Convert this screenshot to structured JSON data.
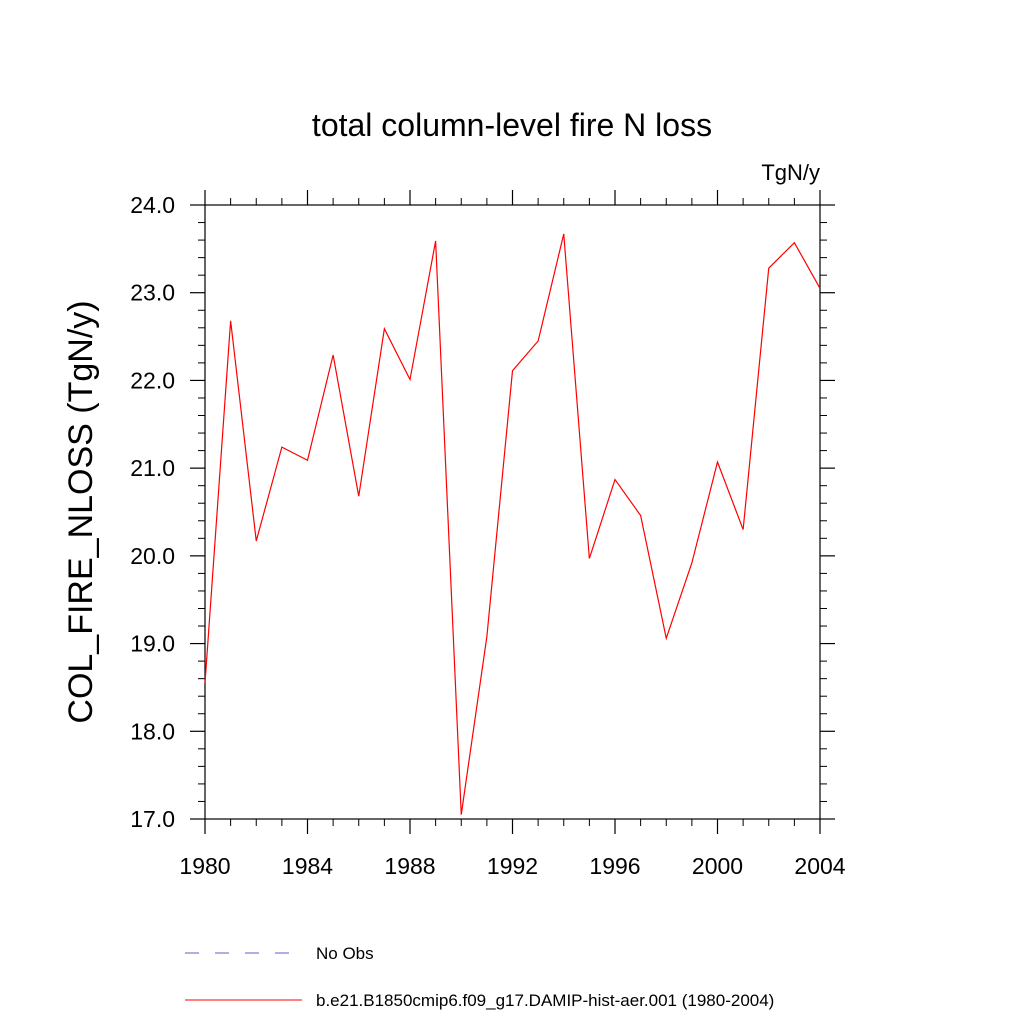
{
  "chart_data": {
    "type": "line",
    "title": "total column-level fire N loss",
    "units_label": "TgN/y",
    "xlabel": "",
    "ylabel": "COL_FIRE_NLOSS  (TgN/y)",
    "xlim": [
      1980,
      2004
    ],
    "ylim": [
      17.0,
      24.0
    ],
    "x_ticks": [
      "1980",
      "1984",
      "1988",
      "1992",
      "1996",
      "2000",
      "2004"
    ],
    "y_ticks": [
      "17.0",
      "18.0",
      "19.0",
      "20.0",
      "21.0",
      "22.0",
      "23.0",
      "24.0"
    ],
    "grid": false,
    "legend_position": "bottom",
    "series": [
      {
        "name": "No Obs",
        "color": "#6a5acd",
        "dash": "dashed",
        "x": [],
        "values": []
      },
      {
        "name": "b.e21.B1850cmip6.f09_g17.DAMIP-hist-aer.001 (1980-2004)",
        "color": "#ff0000",
        "dash": "solid",
        "x": [
          1980,
          1981,
          1982,
          1983,
          1984,
          1985,
          1986,
          1987,
          1988,
          1989,
          1990,
          1991,
          1992,
          1993,
          1994,
          1995,
          1996,
          1997,
          1998,
          1999,
          2000,
          2001,
          2002,
          2003,
          2004
        ],
        "values": [
          18.55,
          22.68,
          20.17,
          21.24,
          21.09,
          22.29,
          20.68,
          22.59,
          22.01,
          23.59,
          17.05,
          19.08,
          22.11,
          22.45,
          23.67,
          19.97,
          20.87,
          20.46,
          19.06,
          19.92,
          21.07,
          20.3,
          23.28,
          23.57,
          23.05
        ]
      }
    ]
  }
}
